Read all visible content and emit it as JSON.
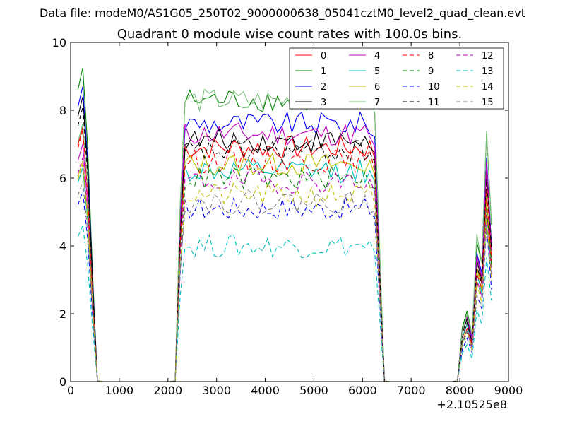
{
  "chart_data": {
    "type": "line",
    "suptitle": "Data file: modeM0/AS1G05_250T02_9000000638_05041cztM0_level2_quad_clean.evt",
    "title": "Quadrant 0 module wise count rates with 100.0s bins.",
    "xlabel": "",
    "ylabel": "",
    "xlim": [
      0,
      9000
    ],
    "ylim": [
      0,
      10
    ],
    "x_offset_label": "+2.10525e8",
    "xticks": [
      0,
      1000,
      2000,
      3000,
      4000,
      5000,
      6000,
      7000,
      8000,
      9000
    ],
    "yticks": [
      0,
      2,
      4,
      6,
      8,
      10
    ],
    "legend": {
      "placement": "top-right",
      "columns": 4
    },
    "segments": [
      {
        "start": 150,
        "end": 550
      },
      {
        "start": 2150,
        "end": 6450
      },
      {
        "start": 7950,
        "end": 8650
      }
    ],
    "series": [
      {
        "name": "0",
        "color": "#ff0000",
        "dash": "solid",
        "plateau": 6.9,
        "peak1": 7.5
      },
      {
        "name": "1",
        "color": "#008000",
        "dash": "solid",
        "plateau": 8.3,
        "peak1": 9.25
      },
      {
        "name": "2",
        "color": "#0000ff",
        "dash": "solid",
        "plateau": 7.6,
        "peak1": 8.7
      },
      {
        "name": "3",
        "color": "#000000",
        "dash": "solid",
        "plateau": 7.1,
        "peak1": 8.4
      },
      {
        "name": "4",
        "color": "#bf00bf",
        "dash": "solid",
        "plateau": 7.3,
        "peak1": 7.0
      },
      {
        "name": "5",
        "color": "#00bfbf",
        "dash": "solid",
        "plateau": 6.2,
        "peak1": 6.3
      },
      {
        "name": "6",
        "color": "#bfbf00",
        "dash": "solid",
        "plateau": 6.4,
        "peak1": 6.5
      },
      {
        "name": "7",
        "color": "#7ec07e",
        "dash": "solid",
        "plateau": 8.3,
        "peak1": 7.6
      },
      {
        "name": "8",
        "color": "#ff0000",
        "dash": "dashed",
        "plateau": 6.5,
        "peak1": 7.4
      },
      {
        "name": "9",
        "color": "#008000",
        "dash": "dashed",
        "plateau": 6.0,
        "peak1": 6.4
      },
      {
        "name": "10",
        "color": "#0000ff",
        "dash": "dashed",
        "plateau": 5.1,
        "peak1": 5.6
      },
      {
        "name": "11",
        "color": "#000000",
        "dash": "dashed",
        "plateau": 6.8,
        "peak1": 8.1
      },
      {
        "name": "12",
        "color": "#bf00bf",
        "dash": "dashed",
        "plateau": 5.9,
        "peak1": 6.6
      },
      {
        "name": "13",
        "color": "#00bfbf",
        "dash": "dashed",
        "plateau": 4.0,
        "peak1": 4.6
      },
      {
        "name": "14",
        "color": "#bfbf00",
        "dash": "dashed",
        "plateau": 5.5,
        "peak1": 6.4
      },
      {
        "name": "15",
        "color": "#808080",
        "dash": "dashed",
        "plateau": 5.3,
        "peak1": 5.9
      }
    ]
  }
}
